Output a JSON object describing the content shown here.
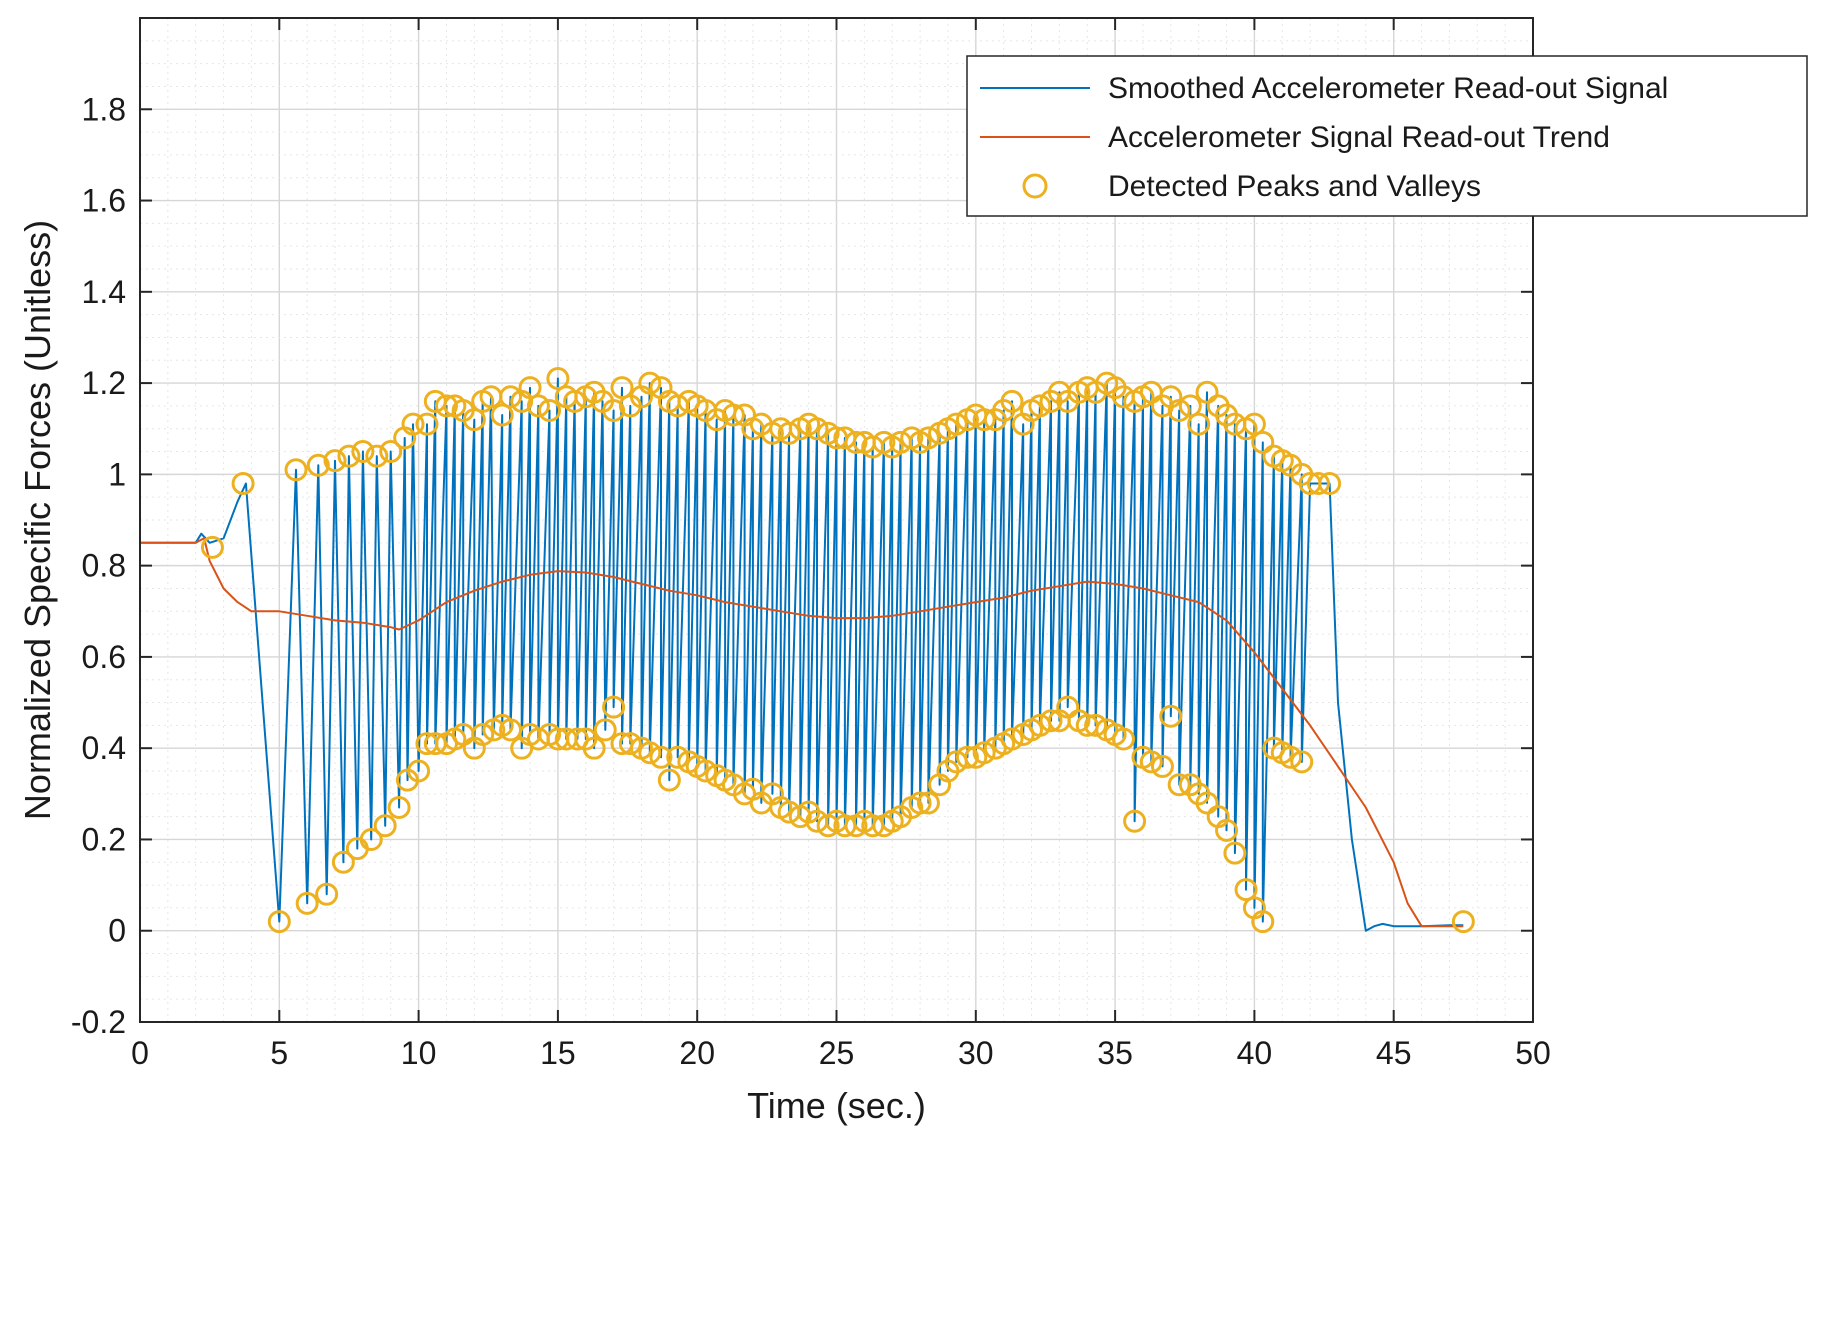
{
  "chart_data": {
    "type": "line",
    "title": "",
    "xlabel": "Time (sec.)",
    "ylabel": "Normalized Specific Forces (Unitless)",
    "xlim": [
      0,
      50
    ],
    "ylim": [
      -0.2,
      2.0
    ],
    "x_ticks": [
      0,
      5,
      10,
      15,
      20,
      25,
      30,
      35,
      40,
      45,
      50
    ],
    "x_tick_labels": [
      "0",
      "5",
      "10",
      "15",
      "20",
      "25",
      "30",
      "35",
      "40",
      "45",
      "50"
    ],
    "y_ticks": [
      -0.2,
      0,
      0.2,
      0.4,
      0.6,
      0.8,
      1.0,
      1.2,
      1.4,
      1.6,
      1.8
    ],
    "y_tick_labels": [
      "-0.2",
      "0",
      "0.2",
      "0.4",
      "0.6",
      "0.8",
      "1",
      "1.2",
      "1.4",
      "1.6",
      "1.8"
    ],
    "grid": true,
    "minor_grid": true,
    "legend_position": "top-right",
    "legend": [
      "Smoothed Accelerometer Read-out Signal",
      "Accelerometer Signal Read-out Trend",
      "Detected Peaks and Valleys"
    ],
    "colors": {
      "signal": "#0072BD",
      "trend": "#D95319",
      "markers": "#EDB120",
      "grid_major": "#d6d6d6",
      "grid_minor": "#e6e6e6",
      "axes": "#262626"
    },
    "series": [
      {
        "name": "Smoothed Accelerometer Read-out Signal",
        "kind": "oscillation",
        "baseline_segment": {
          "x": [
            0,
            2.0,
            2.2,
            2.5,
            3.0,
            3.5,
            3.8
          ],
          "y": [
            0.85,
            0.85,
            0.87,
            0.85,
            0.86,
            0.94,
            0.98
          ]
        },
        "tail_segment": {
          "x": [
            43.0,
            43.5,
            44.0,
            44.3,
            44.6,
            45.0,
            46.0,
            47.0,
            47.5
          ],
          "y": [
            0.5,
            0.2,
            0.0,
            0.01,
            0.015,
            0.01,
            0.01,
            0.012,
            0.012
          ]
        }
      },
      {
        "name": "Accelerometer Signal Read-out Trend",
        "x": [
          0,
          2,
          2.3,
          2.5,
          3,
          3.5,
          4,
          5,
          6,
          7,
          8,
          9,
          9.3,
          10,
          11,
          12,
          13,
          14,
          15,
          16,
          17,
          18,
          19,
          20,
          21,
          22,
          23,
          24,
          25,
          26,
          27,
          28,
          29,
          30,
          31,
          32,
          33,
          34,
          35,
          36,
          37,
          38,
          39,
          40,
          41,
          42,
          43,
          44,
          44.5,
          45,
          45.5,
          46,
          47,
          47.5
        ],
        "y": [
          0.85,
          0.85,
          0.86,
          0.81,
          0.75,
          0.72,
          0.7,
          0.7,
          0.69,
          0.68,
          0.675,
          0.665,
          0.66,
          0.68,
          0.72,
          0.745,
          0.765,
          0.78,
          0.788,
          0.785,
          0.775,
          0.76,
          0.745,
          0.735,
          0.72,
          0.71,
          0.7,
          0.69,
          0.685,
          0.685,
          0.69,
          0.7,
          0.71,
          0.72,
          0.73,
          0.745,
          0.755,
          0.765,
          0.76,
          0.75,
          0.735,
          0.72,
          0.68,
          0.61,
          0.53,
          0.45,
          0.36,
          0.27,
          0.21,
          0.15,
          0.06,
          0.01,
          0.01,
          0.01
        ]
      },
      {
        "name": "Detected Peaks and Valleys",
        "peaks": {
          "x": [
            3.7,
            5.6,
            6.4,
            7.0,
            7.5,
            8.0,
            8.5,
            9.0,
            9.5,
            9.8,
            10.3,
            10.6,
            11.0,
            11.3,
            11.6,
            12.0,
            12.3,
            12.6,
            13.0,
            13.3,
            13.7,
            14.0,
            14.3,
            14.7,
            15.0,
            15.3,
            15.6,
            16.0,
            16.3,
            16.6,
            17.0,
            17.3,
            17.6,
            18.0,
            18.3,
            18.7,
            19.0,
            19.3,
            19.7,
            20.0,
            20.3,
            20.7,
            21.0,
            21.3,
            21.7,
            22.0,
            22.3,
            22.7,
            23.0,
            23.3,
            23.7,
            24.0,
            24.3,
            24.7,
            25.0,
            25.3,
            25.7,
            26.0,
            26.3,
            26.7,
            27.0,
            27.3,
            27.7,
            28.0,
            28.3,
            28.7,
            29.0,
            29.3,
            29.7,
            30.0,
            30.3,
            30.7,
            31.0,
            31.3,
            31.7,
            32.0,
            32.3,
            32.7,
            33.0,
            33.3,
            33.7,
            34.0,
            34.3,
            34.7,
            35.0,
            35.3,
            35.7,
            36.0,
            36.3,
            36.7,
            37.0,
            37.3,
            37.7,
            38.0,
            38.3,
            38.7,
            39.0,
            39.3,
            39.7,
            40.0,
            40.3,
            40.7,
            41.0,
            41.3,
            41.7,
            42.0,
            42.3,
            42.7
          ],
          "y": [
            0.98,
            1.01,
            1.02,
            1.03,
            1.04,
            1.05,
            1.04,
            1.05,
            1.08,
            1.11,
            1.11,
            1.16,
            1.15,
            1.15,
            1.14,
            1.12,
            1.16,
            1.17,
            1.13,
            1.17,
            1.16,
            1.19,
            1.15,
            1.14,
            1.21,
            1.17,
            1.16,
            1.17,
            1.18,
            1.16,
            1.14,
            1.19,
            1.15,
            1.17,
            1.2,
            1.19,
            1.16,
            1.15,
            1.16,
            1.15,
            1.14,
            1.12,
            1.14,
            1.13,
            1.13,
            1.1,
            1.11,
            1.09,
            1.1,
            1.09,
            1.1,
            1.11,
            1.1,
            1.09,
            1.08,
            1.08,
            1.07,
            1.07,
            1.06,
            1.07,
            1.06,
            1.07,
            1.08,
            1.07,
            1.08,
            1.09,
            1.1,
            1.11,
            1.12,
            1.13,
            1.12,
            1.12,
            1.14,
            1.16,
            1.11,
            1.14,
            1.15,
            1.16,
            1.18,
            1.16,
            1.18,
            1.19,
            1.18,
            1.2,
            1.19,
            1.17,
            1.16,
            1.17,
            1.18,
            1.15,
            1.17,
            1.14,
            1.15,
            1.11,
            1.18,
            1.15,
            1.13,
            1.11,
            1.1,
            1.11,
            1.07,
            1.04,
            1.03,
            1.02,
            1.0,
            0.98,
            0.98,
            0.98
          ]
        },
        "valleys": {
          "x": [
            2.6,
            5.0,
            6.0,
            6.7,
            7.3,
            7.8,
            8.3,
            8.8,
            9.3,
            9.6,
            10.0,
            10.3,
            10.6,
            11.0,
            11.3,
            11.6,
            12.0,
            12.3,
            12.7,
            13.0,
            13.3,
            13.7,
            14.0,
            14.3,
            14.7,
            15.0,
            15.3,
            15.7,
            16.0,
            16.3,
            16.7,
            17.0,
            17.3,
            17.6,
            18.0,
            18.3,
            18.7,
            19.0,
            19.3,
            19.7,
            20.0,
            20.3,
            20.7,
            21.0,
            21.3,
            21.7,
            22.0,
            22.3,
            22.7,
            23.0,
            23.3,
            23.7,
            24.0,
            24.3,
            24.7,
            25.0,
            25.3,
            25.7,
            26.0,
            26.3,
            26.7,
            27.0,
            27.3,
            27.7,
            28.0,
            28.3,
            28.7,
            29.0,
            29.3,
            29.7,
            30.0,
            30.3,
            30.7,
            31.0,
            31.3,
            31.7,
            32.0,
            32.3,
            32.7,
            33.0,
            33.3,
            33.7,
            34.0,
            34.3,
            34.7,
            35.0,
            35.3,
            35.7,
            36.0,
            36.3,
            36.7,
            37.0,
            37.3,
            37.7,
            38.0,
            38.3,
            38.7,
            39.0,
            39.3,
            39.7,
            40.0,
            40.3,
            40.7,
            41.0,
            41.3,
            41.7
          ],
          "y": [
            0.84,
            0.02,
            0.06,
            0.08,
            0.15,
            0.18,
            0.2,
            0.23,
            0.27,
            0.33,
            0.35,
            0.41,
            0.41,
            0.41,
            0.42,
            0.43,
            0.4,
            0.43,
            0.44,
            0.45,
            0.44,
            0.4,
            0.43,
            0.42,
            0.43,
            0.42,
            0.42,
            0.42,
            0.42,
            0.4,
            0.44,
            0.49,
            0.41,
            0.41,
            0.4,
            0.39,
            0.38,
            0.33,
            0.38,
            0.37,
            0.36,
            0.35,
            0.34,
            0.33,
            0.32,
            0.3,
            0.31,
            0.28,
            0.3,
            0.27,
            0.26,
            0.25,
            0.26,
            0.24,
            0.23,
            0.24,
            0.23,
            0.23,
            0.24,
            0.23,
            0.23,
            0.24,
            0.25,
            0.27,
            0.28,
            0.28,
            0.32,
            0.35,
            0.37,
            0.38,
            0.38,
            0.39,
            0.4,
            0.41,
            0.42,
            0.43,
            0.44,
            0.45,
            0.46,
            0.46,
            0.49,
            0.46,
            0.45,
            0.45,
            0.44,
            0.43,
            0.42,
            0.24,
            0.38,
            0.37,
            0.36,
            0.47,
            0.32,
            0.32,
            0.3,
            0.28,
            0.25,
            0.22,
            0.17,
            0.09,
            0.05,
            0.02,
            0.4,
            0.39,
            0.38,
            0.37
          ],
          "extra_end": {
            "x": 47.5,
            "y": 0.02
          }
        }
      }
    ]
  }
}
